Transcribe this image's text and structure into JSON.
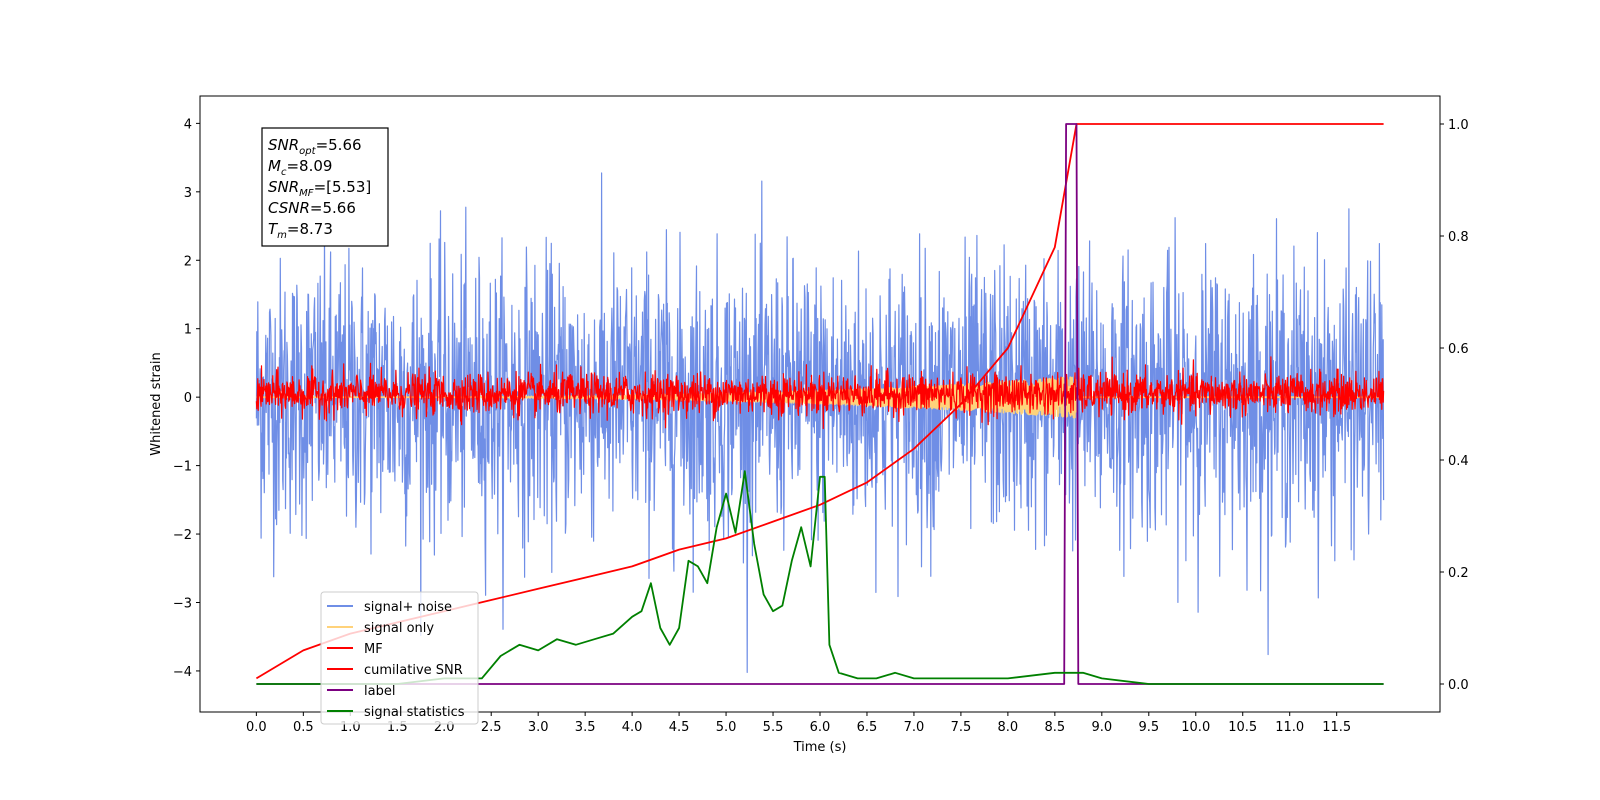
{
  "chart_data": {
    "type": "line",
    "xlabel": "Time (s)",
    "ylabel": "Whitened strain",
    "xlim": [
      -0.6,
      12.6
    ],
    "ylim": [
      -4.6,
      4.4
    ],
    "y2lim": [
      -0.05,
      1.05
    ],
    "xticks": [
      "0.0",
      "0.5",
      "1.0",
      "1.5",
      "2.0",
      "2.5",
      "3.0",
      "3.5",
      "4.0",
      "4.5",
      "5.0",
      "5.5",
      "6.0",
      "6.5",
      "7.0",
      "7.5",
      "8.0",
      "8.5",
      "9.0",
      "9.5",
      "10.0",
      "10.5",
      "11.0",
      "11.5"
    ],
    "yticks": [
      "4",
      "3",
      "2",
      "1",
      "0",
      "−1",
      "−2",
      "−3",
      "−4"
    ],
    "y2ticks": [
      "1.0",
      "0.8",
      "0.6",
      "0.4",
      "0.2",
      "0.0"
    ],
    "grid": false,
    "legend_position": "lower-left",
    "annotation": {
      "lines": [
        {
          "base": "SNR",
          "sub": "opt",
          "value": "=5.66"
        },
        {
          "base": "M",
          "sub": "c",
          "value": "=8.09"
        },
        {
          "base": "SNR",
          "sub": "MF",
          "value": "=[5.53]"
        },
        {
          "base": "CSNR",
          "sub": "",
          "value": "=5.66"
        },
        {
          "base": "T",
          "sub": "m",
          "value": "=8.73"
        }
      ]
    },
    "series": [
      {
        "name": "signal+ noise",
        "color": "#6f8ee6",
        "axis": "left",
        "kind": "noise",
        "mean": 0.0,
        "std": 1.0,
        "x_range": [
          0,
          12.0
        ]
      },
      {
        "name": "signal only",
        "color": "#ffd27a",
        "axis": "left",
        "kind": "chirp",
        "x_range": [
          0,
          12.0
        ],
        "amplitude_max": 0.3
      },
      {
        "name": "MF",
        "color": "#ff0000",
        "axis": "left",
        "kind": "noise",
        "mean": 0.05,
        "std": 0.15,
        "x_range": [
          0,
          12.0
        ]
      },
      {
        "name": "cumilative SNR",
        "color": "#ff0000",
        "axis": "right",
        "x": [
          0.0,
          0.5,
          1.0,
          1.5,
          2.0,
          2.5,
          3.0,
          3.5,
          4.0,
          4.5,
          5.0,
          5.5,
          6.0,
          6.5,
          7.0,
          7.5,
          8.0,
          8.5,
          8.73,
          12.0
        ],
        "values": [
          0.01,
          0.06,
          0.09,
          0.11,
          0.13,
          0.15,
          0.17,
          0.19,
          0.21,
          0.24,
          0.26,
          0.29,
          0.32,
          0.36,
          0.42,
          0.5,
          0.6,
          0.78,
          1.0,
          1.0
        ]
      },
      {
        "name": "label",
        "color": "#7b0080",
        "axis": "right",
        "x": [
          0.0,
          8.6,
          8.62,
          8.73,
          8.75,
          12.0
        ],
        "values": [
          0.0,
          0.0,
          1.0,
          1.0,
          0.0,
          0.0
        ]
      },
      {
        "name": "signal statistics",
        "color": "#008000",
        "axis": "right",
        "x": [
          0.0,
          0.5,
          1.0,
          1.5,
          2.0,
          2.2,
          2.4,
          2.6,
          2.8,
          3.0,
          3.2,
          3.4,
          3.6,
          3.8,
          4.0,
          4.1,
          4.2,
          4.3,
          4.4,
          4.5,
          4.6,
          4.7,
          4.8,
          4.9,
          5.0,
          5.1,
          5.2,
          5.3,
          5.4,
          5.5,
          5.6,
          5.7,
          5.8,
          5.9,
          6.0,
          6.05,
          6.1,
          6.2,
          6.4,
          6.6,
          6.8,
          7.0,
          7.5,
          8.0,
          8.5,
          8.8,
          9.0,
          9.5,
          10.0,
          10.5,
          11.0,
          11.5,
          12.0
        ],
        "values": [
          0.0,
          0.0,
          0.0,
          0.0,
          0.01,
          0.01,
          0.01,
          0.05,
          0.07,
          0.06,
          0.08,
          0.07,
          0.08,
          0.09,
          0.12,
          0.13,
          0.18,
          0.1,
          0.07,
          0.1,
          0.22,
          0.21,
          0.18,
          0.28,
          0.34,
          0.27,
          0.38,
          0.25,
          0.16,
          0.13,
          0.14,
          0.22,
          0.28,
          0.21,
          0.37,
          0.37,
          0.07,
          0.02,
          0.01,
          0.01,
          0.02,
          0.01,
          0.01,
          0.01,
          0.02,
          0.02,
          0.01,
          0.0,
          0.0,
          0.0,
          0.0,
          0.0,
          0.0
        ]
      }
    ]
  }
}
